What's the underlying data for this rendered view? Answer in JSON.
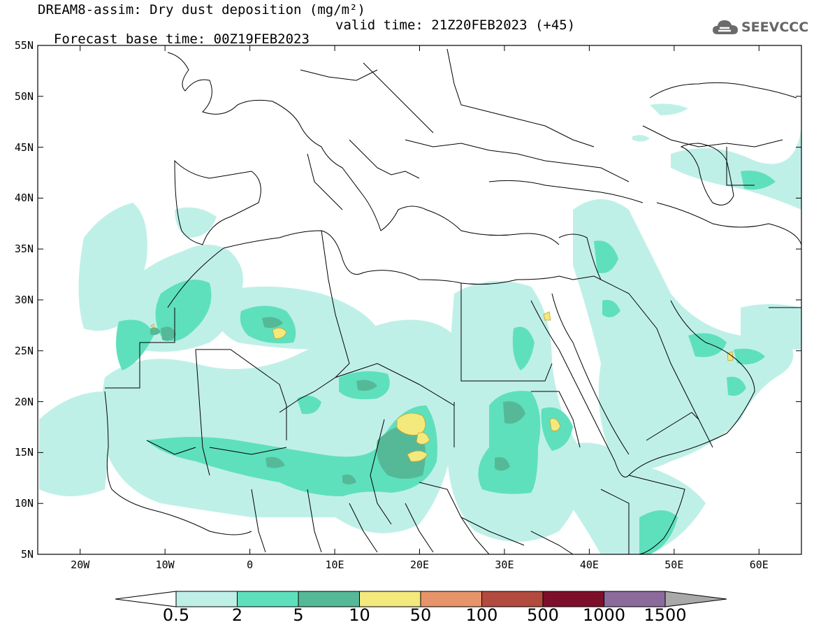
{
  "header": {
    "title_line1": "DREAM8-assim: Dry dust deposition (mg/m²)",
    "title_line2_base": "Forecast base time: 00Z19FEB2023",
    "title_line2_valid": "valid time: 21Z20FEB2023 (+45)",
    "logo_text": "SEEVCCC"
  },
  "map": {
    "lon_range": [
      -25,
      65
    ],
    "lat_range": [
      5,
      55
    ],
    "lat_ticks": [
      "55N",
      "50N",
      "45N",
      "40N",
      "35N",
      "30N",
      "25N",
      "20N",
      "15N",
      "10N",
      "5N"
    ],
    "lon_ticks": [
      "20W",
      "10W",
      "0",
      "10E",
      "20E",
      "30E",
      "40E",
      "50E",
      "60E"
    ],
    "land_color": "#ffffff",
    "border_color": "#000000"
  },
  "legend": {
    "levels": [
      "0.5",
      "2",
      "5",
      "10",
      "50",
      "100",
      "500",
      "1000",
      "1500"
    ],
    "colors": [
      "#ffffff",
      "#bff0e8",
      "#5fe0bd",
      "#55b998",
      "#f3e97c",
      "#e8946a",
      "#b24a3e",
      "#7e0f2a",
      "#8b6a9c",
      "#a9a9a9"
    ],
    "units": "mg/m²"
  }
}
